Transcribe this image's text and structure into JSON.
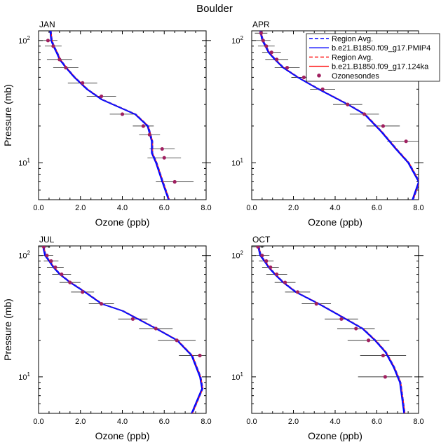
{
  "title": "Boulder",
  "legend": {
    "placement": "top-right of APR panel",
    "entries": [
      {
        "label": "Region Avg.",
        "color": "#0000ff",
        "dash": "dashed",
        "marker": "none"
      },
      {
        "label": "b.e21.B1850.f09_g17.PMIP4",
        "color": "#0000ff",
        "dash": "solid",
        "marker": "none"
      },
      {
        "label": "Region Avg.",
        "color": "#ff0000",
        "dash": "dashed",
        "marker": "none"
      },
      {
        "label": "b.e21.B1850.f09_g17.124ka",
        "color": "#ff0000",
        "dash": "solid",
        "marker": "none"
      },
      {
        "label": "Ozonesondes",
        "color": "#a02060",
        "dash": "none",
        "marker": "dot"
      }
    ]
  },
  "chart_data": [
    {
      "type": "line",
      "panel": "JAN",
      "xlabel": "Ozone (ppb)",
      "ylabel": "Pressure (mb)",
      "xlim": [
        0,
        8
      ],
      "ylim": [
        120,
        5
      ],
      "y_scale": "log",
      "xticks": [
        "0.0",
        "2.0",
        "4.0",
        "6.0",
        "8.0"
      ],
      "ytick_labels": [
        {
          "value": 10,
          "base": "10",
          "exp": "1"
        },
        {
          "value": 100,
          "base": "10",
          "exp": "2"
        }
      ],
      "model_profile": [
        [
          0.55,
          120
        ],
        [
          0.6,
          100
        ],
        [
          0.7,
          90
        ],
        [
          0.85,
          80
        ],
        [
          1.0,
          70
        ],
        [
          1.3,
          60
        ],
        [
          1.7,
          50
        ],
        [
          2.3,
          40
        ],
        [
          3.0,
          33
        ],
        [
          4.6,
          25
        ],
        [
          5.2,
          20
        ],
        [
          5.4,
          15
        ],
        [
          5.4,
          12
        ],
        [
          5.6,
          10
        ],
        [
          5.9,
          7
        ],
        [
          6.2,
          5
        ]
      ],
      "ozonesondes": [
        {
          "pressure": 100,
          "ozone": 0.45,
          "err": 0.45
        },
        {
          "pressure": 90,
          "ozone": 0.7,
          "err": 0.4
        },
        {
          "pressure": 70,
          "ozone": 1.0,
          "err": 0.6
        },
        {
          "pressure": 60,
          "ozone": 1.3,
          "err": 0.6
        },
        {
          "pressure": 45,
          "ozone": 2.1,
          "err": 0.7
        },
        {
          "pressure": 35,
          "ozone": 3.0,
          "err": 0.7
        },
        {
          "pressure": 25,
          "ozone": 4.0,
          "err": 0.6
        },
        {
          "pressure": 20,
          "ozone": 5.0,
          "err": 0.5
        },
        {
          "pressure": 17,
          "ozone": 5.3,
          "err": 0.5
        },
        {
          "pressure": 13,
          "ozone": 5.9,
          "err": 0.6
        },
        {
          "pressure": 11,
          "ozone": 6.0,
          "err": 0.8
        },
        {
          "pressure": 7,
          "ozone": 6.5,
          "err": 0.9
        }
      ]
    },
    {
      "type": "line",
      "panel": "APR",
      "xlabel": "Ozone (ppb)",
      "ylabel": "",
      "xlim": [
        0,
        8
      ],
      "ylim": [
        120,
        5
      ],
      "y_scale": "log",
      "xticks": [
        "0.0",
        "2.0",
        "4.0",
        "6.0",
        "8.0"
      ],
      "ytick_labels": [
        {
          "value": 10,
          "base": "10",
          "exp": "1"
        },
        {
          "value": 100,
          "base": "10",
          "exp": "2"
        }
      ],
      "model_profile": [
        [
          0.4,
          120
        ],
        [
          0.5,
          100
        ],
        [
          0.65,
          90
        ],
        [
          0.8,
          80
        ],
        [
          1.1,
          70
        ],
        [
          1.5,
          60
        ],
        [
          2.2,
          50
        ],
        [
          3.2,
          40
        ],
        [
          4.6,
          30
        ],
        [
          5.4,
          25
        ],
        [
          6.2,
          18
        ],
        [
          6.9,
          13
        ],
        [
          7.5,
          10
        ],
        [
          8.0,
          7
        ],
        [
          7.7,
          5
        ]
      ],
      "ozonesondes": [
        {
          "pressure": 115,
          "ozone": 0.45,
          "err": 0.3
        },
        {
          "pressure": 100,
          "ozone": 0.55,
          "err": 0.35
        },
        {
          "pressure": 90,
          "ozone": 0.7,
          "err": 0.4
        },
        {
          "pressure": 80,
          "ozone": 0.95,
          "err": 0.45
        },
        {
          "pressure": 70,
          "ozone": 1.2,
          "err": 0.55
        },
        {
          "pressure": 60,
          "ozone": 1.7,
          "err": 0.6
        },
        {
          "pressure": 50,
          "ozone": 2.5,
          "err": 0.6
        },
        {
          "pressure": 40,
          "ozone": 3.4,
          "err": 0.6
        },
        {
          "pressure": 30,
          "ozone": 4.6,
          "err": 0.7
        },
        {
          "pressure": 25,
          "ozone": 5.4,
          "err": 0.7
        },
        {
          "pressure": 20,
          "ozone": 6.3,
          "err": 0.8
        },
        {
          "pressure": 15,
          "ozone": 7.4,
          "err": 0.9
        }
      ]
    },
    {
      "type": "line",
      "panel": "JUL",
      "xlabel": "Ozone (ppb)",
      "ylabel": "Pressure (mb)",
      "xlim": [
        0,
        8
      ],
      "ylim": [
        120,
        5
      ],
      "y_scale": "log",
      "xticks": [
        "0.0",
        "2.0",
        "4.0",
        "6.0",
        "8.0"
      ],
      "ytick_labels": [
        {
          "value": 10,
          "base": "10",
          "exp": "1"
        },
        {
          "value": 100,
          "base": "10",
          "exp": "2"
        }
      ],
      "model_profile": [
        [
          0.2,
          120
        ],
        [
          0.3,
          100
        ],
        [
          0.5,
          90
        ],
        [
          0.7,
          80
        ],
        [
          1.0,
          70
        ],
        [
          1.5,
          60
        ],
        [
          2.2,
          50
        ],
        [
          3.0,
          40
        ],
        [
          4.0,
          35
        ],
        [
          5.6,
          25
        ],
        [
          6.6,
          20
        ],
        [
          7.3,
          15
        ],
        [
          7.7,
          10
        ],
        [
          7.8,
          8
        ],
        [
          7.3,
          5
        ]
      ],
      "ozonesondes": [
        {
          "pressure": 118,
          "ozone": 0.25,
          "err": 0.3
        },
        {
          "pressure": 100,
          "ozone": 0.4,
          "err": 0.3
        },
        {
          "pressure": 90,
          "ozone": 0.6,
          "err": 0.35
        },
        {
          "pressure": 80,
          "ozone": 0.8,
          "err": 0.4
        },
        {
          "pressure": 70,
          "ozone": 1.1,
          "err": 0.45
        },
        {
          "pressure": 60,
          "ozone": 1.5,
          "err": 0.5
        },
        {
          "pressure": 50,
          "ozone": 2.1,
          "err": 0.55
        },
        {
          "pressure": 40,
          "ozone": 3.0,
          "err": 0.6
        },
        {
          "pressure": 30,
          "ozone": 4.5,
          "err": 0.7
        },
        {
          "pressure": 25,
          "ozone": 5.6,
          "err": 0.8
        },
        {
          "pressure": 20,
          "ozone": 6.6,
          "err": 0.9
        },
        {
          "pressure": 15,
          "ozone": 7.7,
          "err": 1.0
        }
      ]
    },
    {
      "type": "line",
      "panel": "OCT",
      "xlabel": "Ozone (ppb)",
      "ylabel": "",
      "xlim": [
        0,
        8
      ],
      "ylim": [
        120,
        5
      ],
      "y_scale": "log",
      "xticks": [
        "0.0",
        "2.0",
        "4.0",
        "6.0",
        "8.0"
      ],
      "ytick_labels": [
        {
          "value": 10,
          "base": "10",
          "exp": "1"
        },
        {
          "value": 100,
          "base": "10",
          "exp": "2"
        }
      ],
      "model_profile": [
        [
          0.3,
          120
        ],
        [
          0.4,
          100
        ],
        [
          0.6,
          90
        ],
        [
          0.8,
          80
        ],
        [
          1.1,
          70
        ],
        [
          1.5,
          60
        ],
        [
          2.1,
          50
        ],
        [
          3.2,
          40
        ],
        [
          4.5,
          30
        ],
        [
          5.3,
          25
        ],
        [
          5.9,
          20
        ],
        [
          6.4,
          16
        ],
        [
          6.8,
          12
        ],
        [
          7.1,
          9
        ],
        [
          7.3,
          5
        ]
      ],
      "ozonesondes": [
        {
          "pressure": 118,
          "ozone": 0.3,
          "err": 0.3
        },
        {
          "pressure": 100,
          "ozone": 0.5,
          "err": 0.35
        },
        {
          "pressure": 90,
          "ozone": 0.7,
          "err": 0.35
        },
        {
          "pressure": 80,
          "ozone": 0.9,
          "err": 0.4
        },
        {
          "pressure": 70,
          "ozone": 1.2,
          "err": 0.5
        },
        {
          "pressure": 60,
          "ozone": 1.6,
          "err": 0.5
        },
        {
          "pressure": 50,
          "ozone": 2.2,
          "err": 0.6
        },
        {
          "pressure": 40,
          "ozone": 3.1,
          "err": 0.7
        },
        {
          "pressure": 30,
          "ozone": 4.3,
          "err": 0.8
        },
        {
          "pressure": 25,
          "ozone": 5.0,
          "err": 0.9
        },
        {
          "pressure": 20,
          "ozone": 5.6,
          "err": 1.0
        },
        {
          "pressure": 15,
          "ozone": 6.3,
          "err": 1.1
        },
        {
          "pressure": 10,
          "ozone": 6.4,
          "err": 1.3
        }
      ]
    }
  ]
}
